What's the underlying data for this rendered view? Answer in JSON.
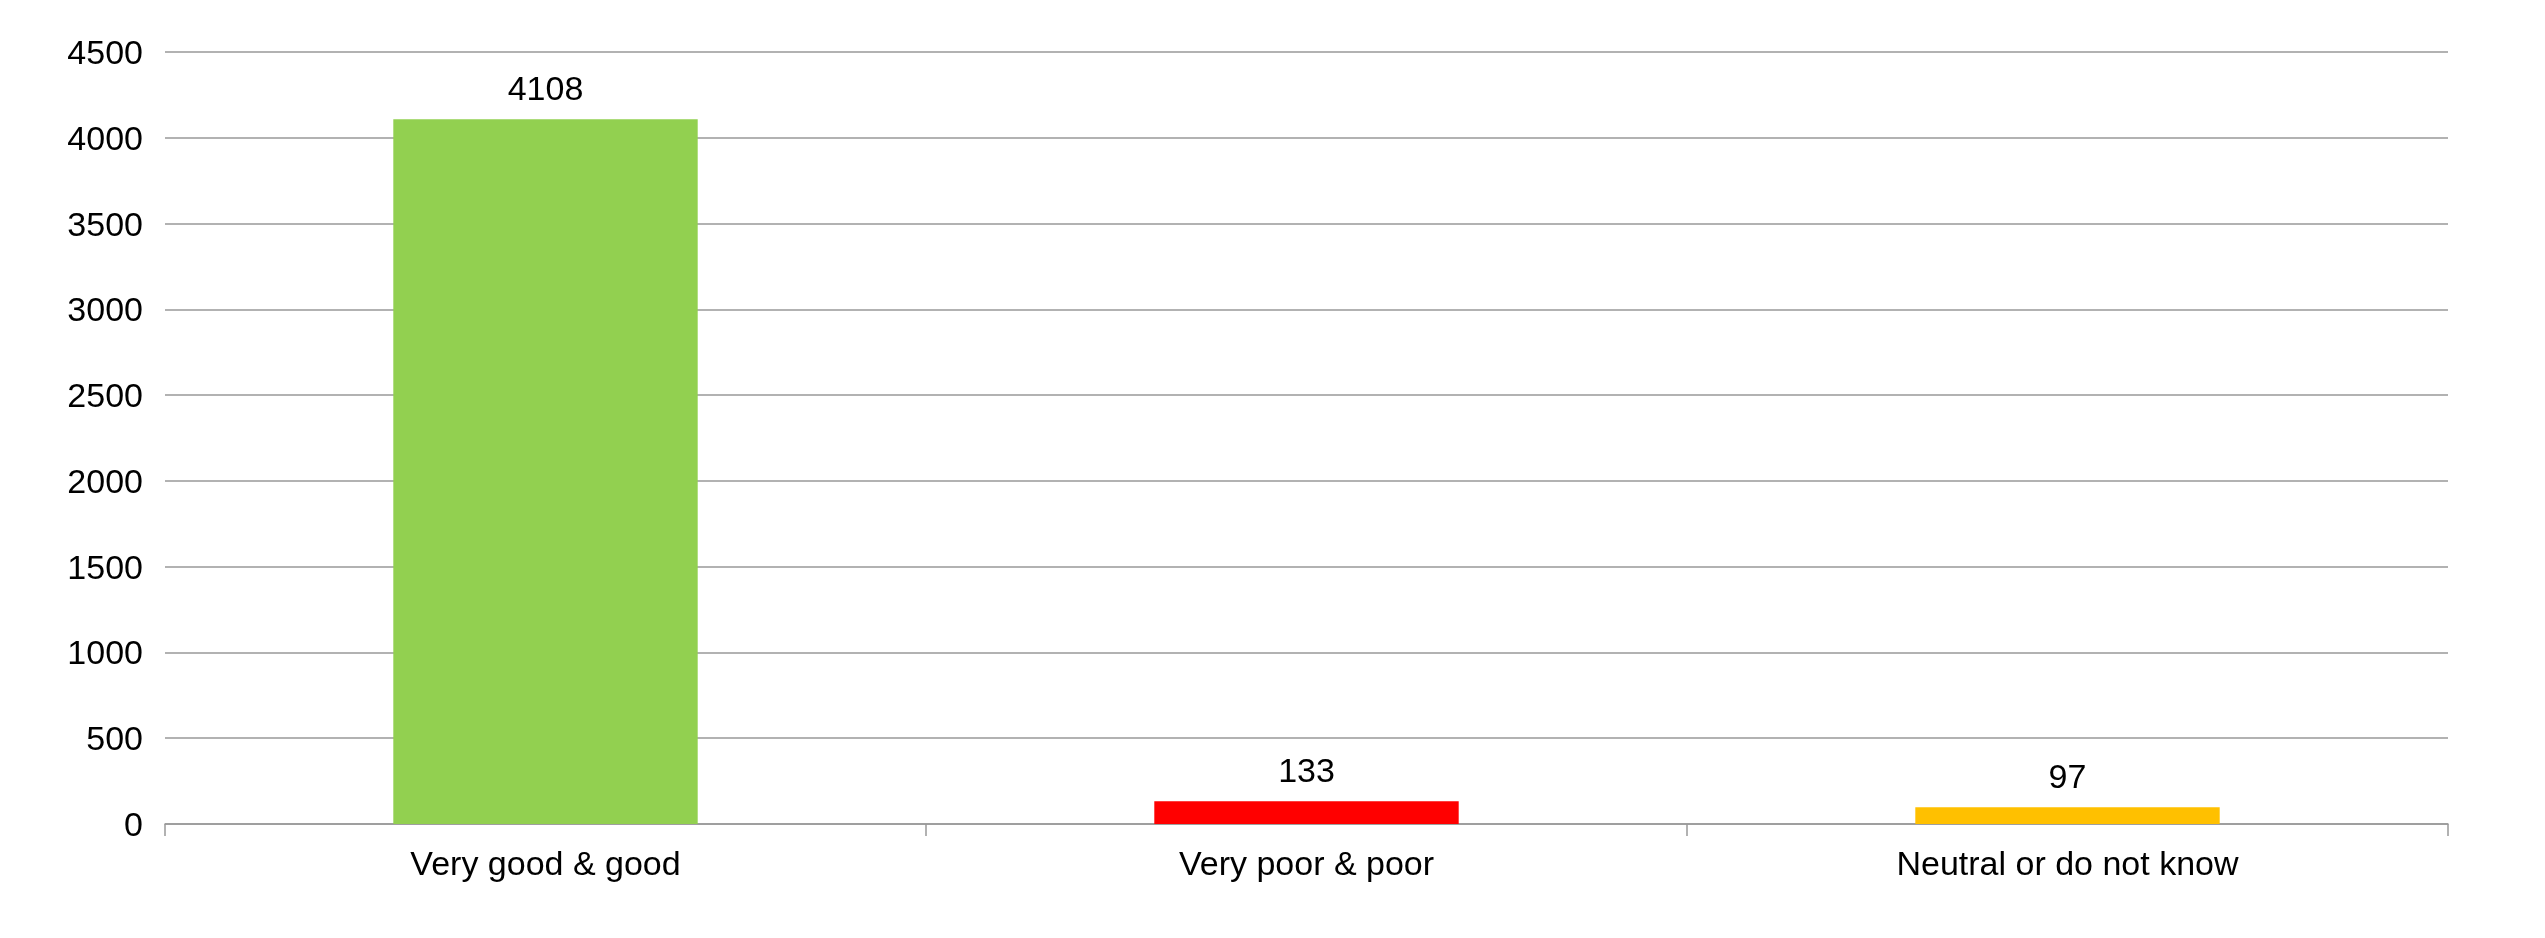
{
  "chart_data": {
    "type": "bar",
    "categories": [
      "Very good & good",
      "Very poor & poor",
      "Neutral or do not know"
    ],
    "values": [
      4108,
      133,
      97
    ],
    "colors": [
      "#92d050",
      "#ff0000",
      "#ffc000"
    ],
    "ylim": [
      0,
      4500
    ],
    "yticks": [
      0,
      500,
      1000,
      1500,
      2000,
      2500,
      3000,
      3500,
      4000,
      4500
    ],
    "grid": "y",
    "data_labels": true
  }
}
